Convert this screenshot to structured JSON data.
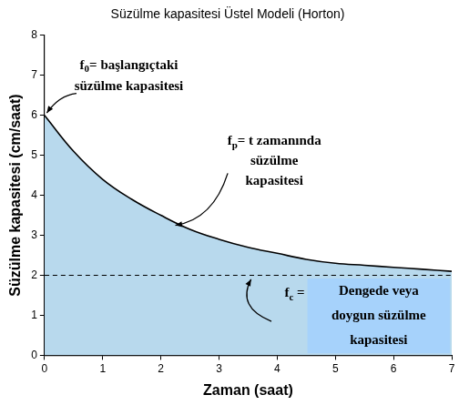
{
  "chart_data": {
    "type": "line",
    "title": "Süzülme kapasitesi Üstel Modeli (Horton)",
    "x_label": "Zaman (saat)",
    "y_label": "Süzülme kapasitesi (cm/saat)",
    "x": [
      0,
      0.5,
      1,
      1.5,
      2,
      2.5,
      3,
      3.5,
      4,
      4.5,
      5,
      5.5,
      6,
      6.5,
      7
    ],
    "series": [
      {
        "values": [
          6,
          5.1,
          4.4,
          3.9,
          3.5,
          3.15,
          2.9,
          2.7,
          2.55,
          2.4,
          2.3,
          2.25,
          2.2,
          2.15,
          2.1
        ],
        "color": "#000000",
        "line_style": "solid",
        "marker": "none"
      },
      {
        "values": [
          2,
          2,
          2,
          2,
          2,
          2,
          2,
          2,
          2,
          2,
          2,
          2,
          2,
          2,
          2
        ],
        "color": "#000000",
        "line_style": "dashed",
        "marker": "none"
      }
    ],
    "xlim": [
      0,
      7
    ],
    "xticks": [
      0,
      1,
      2,
      3,
      4,
      5,
      6,
      7
    ],
    "ylim": [
      0,
      8
    ],
    "yticks": [
      0,
      1,
      2,
      3,
      4,
      5,
      6,
      7,
      8
    ],
    "grid": false,
    "annotations": [
      {
        "symbol": "f",
        "subscript": "0",
        "text": [
          "= başlangıçtaki",
          "süzülme kapasitesi"
        ]
      },
      {
        "symbol": "f",
        "subscript": "p",
        "text": [
          "= t zamanında",
          "süzülme",
          "kapasitesi"
        ]
      },
      {
        "symbol": "f",
        "subscript": "c",
        "text": [
          " ="
        ],
        "box_text": [
          "Dengede veya",
          "doygun süzülme",
          "kapasitesi"
        ]
      }
    ]
  }
}
